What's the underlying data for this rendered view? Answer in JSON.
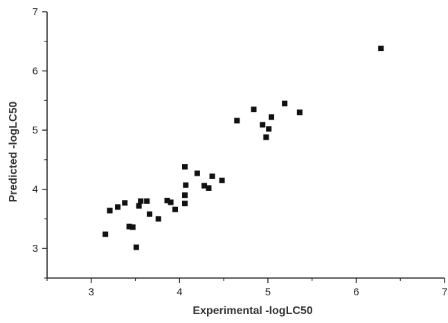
{
  "chart_data": {
    "type": "scatter",
    "xlabel": "Experimental -logLC50",
    "ylabel": "Predicted -logLC50",
    "xlim": [
      2.5,
      7
    ],
    "ylim": [
      2.5,
      7
    ],
    "x_ticks": [
      3,
      4,
      5,
      6,
      7
    ],
    "y_ticks": [
      3,
      4,
      5,
      6,
      7
    ],
    "x_tick_labels": [
      "3",
      "4",
      "5",
      "6",
      "7"
    ],
    "y_tick_labels": [
      "3",
      "4",
      "5",
      "6",
      "7"
    ],
    "minor_tick_step": 0.5,
    "grid": false,
    "marker": "square",
    "marker_color": "#111111",
    "points": [
      {
        "x": 3.16,
        "y": 3.24
      },
      {
        "x": 3.21,
        "y": 3.64
      },
      {
        "x": 3.3,
        "y": 3.7
      },
      {
        "x": 3.38,
        "y": 3.77
      },
      {
        "x": 3.43,
        "y": 3.37
      },
      {
        "x": 3.47,
        "y": 3.36
      },
      {
        "x": 3.51,
        "y": 3.02
      },
      {
        "x": 3.54,
        "y": 3.72
      },
      {
        "x": 3.56,
        "y": 3.8
      },
      {
        "x": 3.63,
        "y": 3.8
      },
      {
        "x": 3.66,
        "y": 3.58
      },
      {
        "x": 3.76,
        "y": 3.5
      },
      {
        "x": 3.86,
        "y": 3.81
      },
      {
        "x": 3.9,
        "y": 3.78
      },
      {
        "x": 3.95,
        "y": 3.66
      },
      {
        "x": 4.06,
        "y": 3.76
      },
      {
        "x": 4.06,
        "y": 3.9
      },
      {
        "x": 4.07,
        "y": 4.07
      },
      {
        "x": 4.06,
        "y": 4.38
      },
      {
        "x": 4.2,
        "y": 4.27
      },
      {
        "x": 4.28,
        "y": 4.06
      },
      {
        "x": 4.33,
        "y": 4.02
      },
      {
        "x": 4.37,
        "y": 4.22
      },
      {
        "x": 4.48,
        "y": 4.15
      },
      {
        "x": 4.65,
        "y": 5.16
      },
      {
        "x": 4.84,
        "y": 5.35
      },
      {
        "x": 4.94,
        "y": 5.09
      },
      {
        "x": 4.98,
        "y": 4.88
      },
      {
        "x": 5.01,
        "y": 5.02
      },
      {
        "x": 5.04,
        "y": 5.22
      },
      {
        "x": 5.19,
        "y": 5.45
      },
      {
        "x": 5.36,
        "y": 5.3
      },
      {
        "x": 6.28,
        "y": 6.38
      }
    ]
  }
}
